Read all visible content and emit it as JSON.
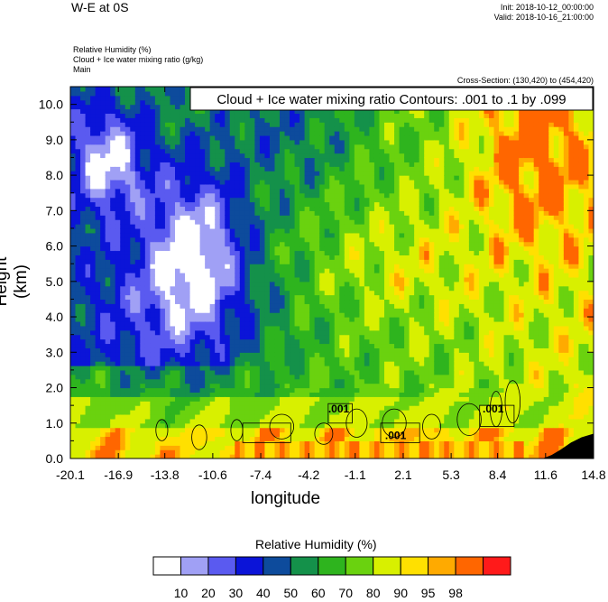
{
  "header": {
    "title": "W-E at 0S",
    "init": "Init: 2018-10-12_00:00:00",
    "valid": "Valid: 2018-10-16_21:00:00",
    "field1": "Relative Humidity   (%)",
    "field2": "Cloud + Ice water mixing ratio   (g/kg)",
    "field3": "Main",
    "cross_section": "Cross-Section: (130,420) to (454,420)"
  },
  "chart_data": {
    "type": "heatmap",
    "title": "",
    "xlabel": "longitude",
    "ylabel": "Height (km)",
    "contour_label": "Cloud + Ice water mixing ratio Contours: .001 to .1 by .099",
    "xticks": [
      "-20.1",
      "-16.9",
      "-13.8",
      "-10.6",
      "-7.4",
      "-4.2",
      "-1.1",
      "2.1",
      "5.3",
      "8.4",
      "11.6",
      "14.8"
    ],
    "xlim": [
      -20.1,
      14.8
    ],
    "yticks": [
      "0.0",
      "1.0",
      "2.0",
      "3.0",
      "4.0",
      "5.0",
      "6.0",
      "7.0",
      "8.0",
      "9.0",
      "10.0"
    ],
    "ylim": [
      0,
      10.5
    ],
    "colorbar": {
      "title": "Relative Humidity  (%)",
      "labels": [
        "10",
        "20",
        "30",
        "40",
        "50",
        "60",
        "70",
        "80",
        "90",
        "95",
        "98"
      ],
      "colors": [
        "#ffffff",
        "#a0a0f5",
        "#5a5af0",
        "#0b14d8",
        "#0d4b9c",
        "#14914a",
        "#2eb41e",
        "#6ad20f",
        "#d8f000",
        "#ffe000",
        "#ffaa00",
        "#ff6600",
        "#ff1a1a"
      ]
    },
    "contour_value_labels": [
      ".001",
      ".001",
      ".001"
    ]
  }
}
